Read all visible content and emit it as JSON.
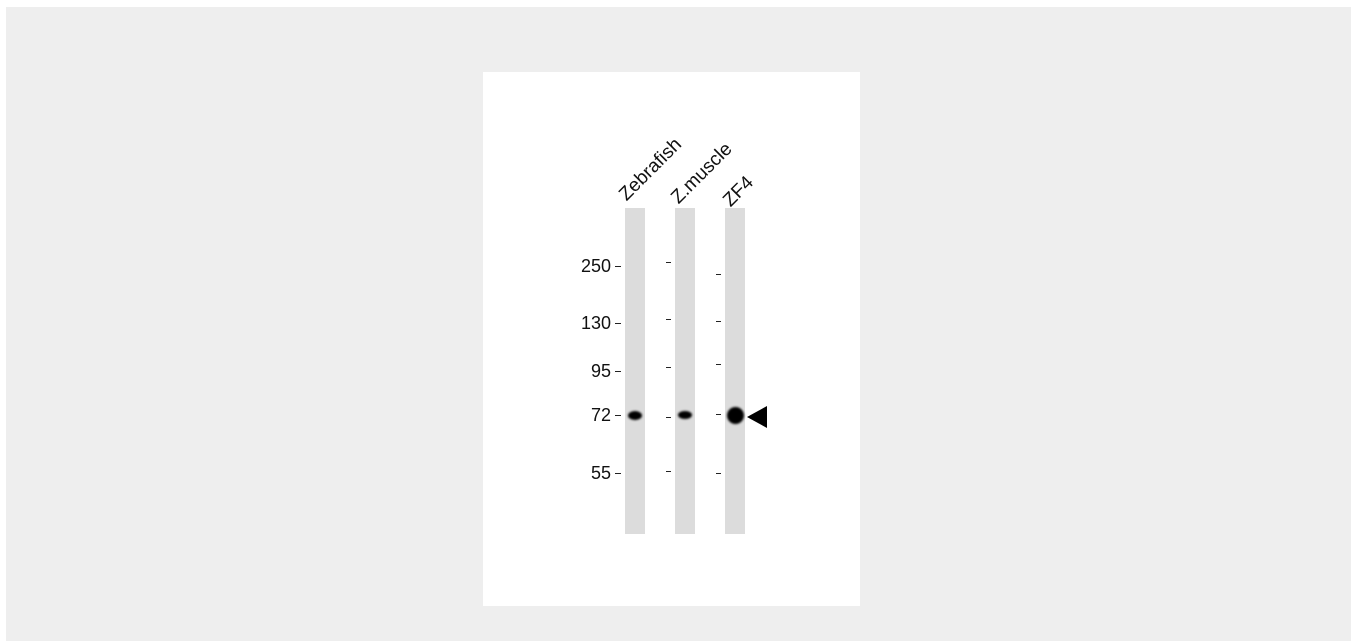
{
  "lanes": [
    {
      "label": "Zebrafish"
    },
    {
      "label": "Z.muscle"
    },
    {
      "label": "ZF4"
    }
  ],
  "markers": [
    "250",
    "130",
    "95",
    "72",
    "55"
  ],
  "colors": {
    "background": "#eeeeee",
    "lane": "#dcdcdc",
    "band": "#000000"
  }
}
